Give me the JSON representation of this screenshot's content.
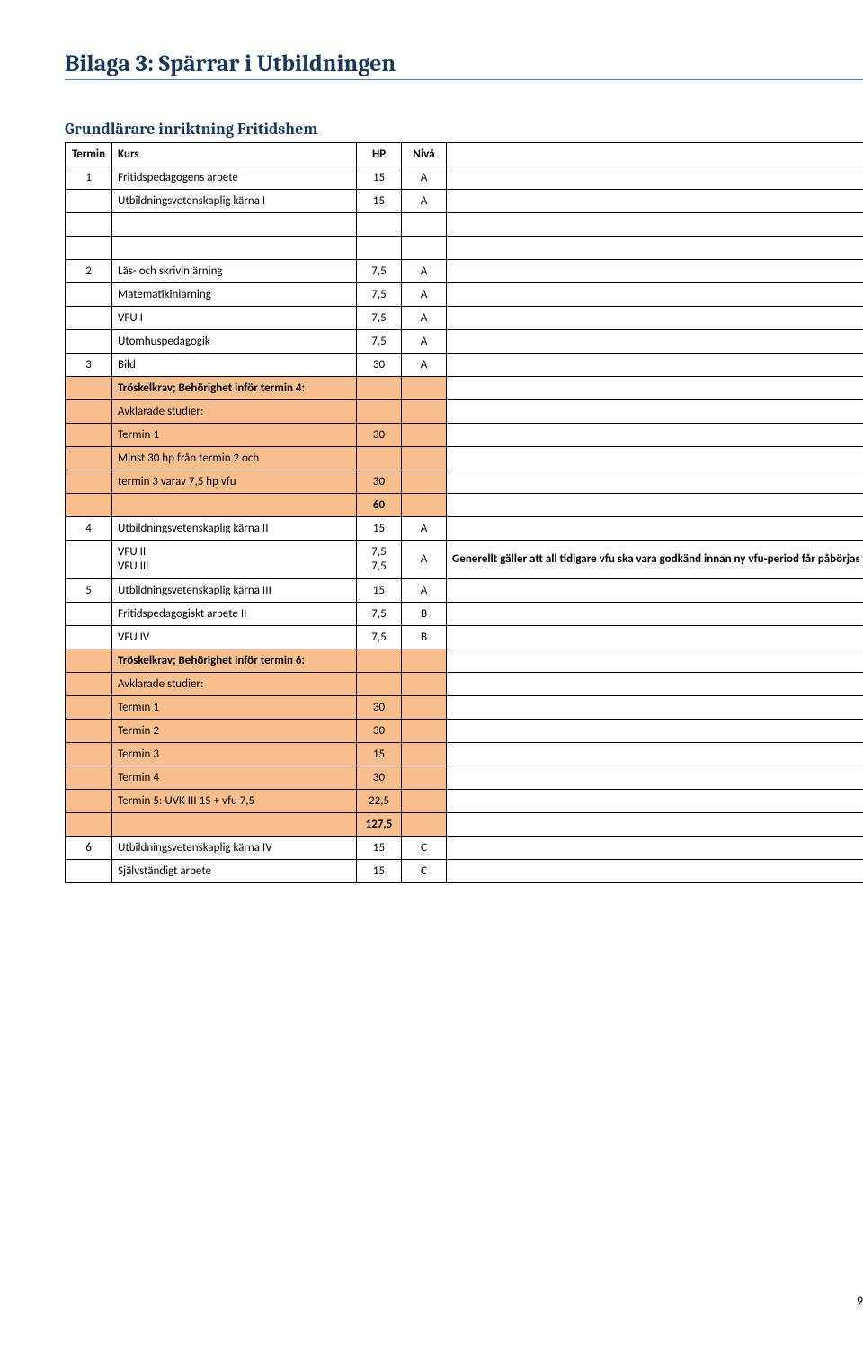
{
  "page_title": "Bilaga 3: Spärrar i Utbildningen",
  "subtitle": "Grundlärare inriktning Fritidshem",
  "page_number": "9",
  "colors": {
    "title_color": "#17365d",
    "title_rule": "#4f81bd",
    "highlight_bg": "#fabf8f",
    "border": "#000000",
    "background": "#ffffff"
  },
  "table": {
    "header": [
      "Termin",
      "Kurs",
      "HP",
      "Nivå",
      ""
    ],
    "rows": [
      {
        "cells": [
          "1",
          "Fritidspedagogens arbete",
          "15",
          "A",
          ""
        ],
        "highlight": [
          false,
          false,
          false,
          false,
          false
        ]
      },
      {
        "cells": [
          "",
          "Utbildningsvetenskaplig kärna I",
          "15",
          "A",
          ""
        ],
        "highlight": [
          false,
          false,
          false,
          false,
          false
        ]
      },
      {
        "cells": [
          "",
          "",
          "",
          "",
          ""
        ],
        "highlight": [
          false,
          false,
          false,
          false,
          false
        ]
      },
      {
        "cells": [
          "",
          "",
          "",
          "",
          ""
        ],
        "highlight": [
          false,
          false,
          false,
          false,
          false
        ]
      },
      {
        "cells": [
          "2",
          "Läs- och skrivinlärning",
          "7,5",
          "A",
          ""
        ],
        "highlight": [
          false,
          false,
          false,
          false,
          false
        ]
      },
      {
        "cells": [
          "",
          "Matematikinlärning",
          "7,5",
          "A",
          ""
        ],
        "highlight": [
          false,
          false,
          false,
          false,
          false
        ]
      },
      {
        "cells": [
          "",
          "VFU I",
          "7,5",
          "A",
          ""
        ],
        "highlight": [
          false,
          false,
          false,
          false,
          false
        ]
      },
      {
        "cells": [
          "",
          "Utomhuspedagogik",
          "7,5",
          "A",
          ""
        ],
        "highlight": [
          false,
          false,
          false,
          false,
          false
        ]
      },
      {
        "cells": [
          "3",
          "Bild",
          "30",
          "A",
          ""
        ],
        "highlight": [
          false,
          false,
          false,
          false,
          false
        ]
      },
      {
        "cells": [
          "",
          "Tröskelkrav; Behörighet inför termin 4:",
          "",
          "",
          ""
        ],
        "highlight": [
          true,
          true,
          true,
          true,
          false
        ],
        "bold": true
      },
      {
        "cells": [
          "",
          "Avklarade studier:",
          "",
          "",
          ""
        ],
        "highlight": [
          true,
          true,
          true,
          true,
          false
        ]
      },
      {
        "cells": [
          "",
          "Termin 1",
          "30",
          "",
          ""
        ],
        "highlight": [
          true,
          true,
          true,
          true,
          false
        ]
      },
      {
        "cells": [
          "",
          "Minst 30 hp från termin 2 och",
          "",
          "",
          ""
        ],
        "highlight": [
          true,
          true,
          true,
          true,
          false
        ]
      },
      {
        "cells": [
          "",
          "termin 3 varav 7,5 hp vfu",
          "30",
          "",
          ""
        ],
        "highlight": [
          true,
          true,
          true,
          true,
          false
        ]
      },
      {
        "cells": [
          "",
          "",
          "60",
          "",
          ""
        ],
        "highlight": [
          true,
          true,
          true,
          true,
          false
        ],
        "bold": true
      },
      {
        "cells": [
          "4",
          "Utbildningsvetenskaplig kärna II",
          "15",
          "A",
          ""
        ],
        "highlight": [
          false,
          false,
          false,
          false,
          false
        ]
      },
      {
        "cells": [
          "",
          "VFU II\nVFU III",
          "7,5\n7,5",
          "A",
          "Generellt gäller att all tidigare vfu ska vara godkänd innan ny vfu-period får påbörjas"
        ],
        "highlight": [
          false,
          false,
          false,
          false,
          false
        ],
        "multiline": true,
        "bold5": true,
        "tall": true
      },
      {
        "cells": [
          "5",
          "Utbildningsvetenskaplig kärna III",
          "15",
          "A",
          ""
        ],
        "highlight": [
          false,
          false,
          false,
          false,
          false
        ]
      },
      {
        "cells": [
          "",
          "Fritidspedagogiskt arbete  II",
          "7,5",
          "B",
          ""
        ],
        "highlight": [
          false,
          false,
          false,
          false,
          false
        ]
      },
      {
        "cells": [
          "",
          "VFU IV",
          "7,5",
          "B",
          ""
        ],
        "highlight": [
          false,
          false,
          false,
          false,
          false
        ]
      },
      {
        "cells": [
          "",
          "Tröskelkrav; Behörighet inför termin 6:",
          "",
          "",
          ""
        ],
        "highlight": [
          true,
          true,
          true,
          true,
          false
        ],
        "bold": true
      },
      {
        "cells": [
          "",
          "Avklarade studier:",
          "",
          "",
          ""
        ],
        "highlight": [
          true,
          true,
          true,
          true,
          false
        ]
      },
      {
        "cells": [
          "",
          "Termin 1",
          "30",
          "",
          ""
        ],
        "highlight": [
          true,
          true,
          true,
          true,
          false
        ]
      },
      {
        "cells": [
          "",
          "Termin 2",
          "30",
          "",
          ""
        ],
        "highlight": [
          true,
          true,
          true,
          true,
          false
        ]
      },
      {
        "cells": [
          "",
          "Termin 3",
          "15",
          "",
          ""
        ],
        "highlight": [
          true,
          true,
          true,
          true,
          false
        ]
      },
      {
        "cells": [
          "",
          "Termin 4",
          "30",
          "",
          ""
        ],
        "highlight": [
          true,
          true,
          true,
          true,
          false
        ]
      },
      {
        "cells": [
          "",
          "Termin 5: UVK III 15  + vfu 7,5",
          "22,5",
          "",
          ""
        ],
        "highlight": [
          true,
          true,
          true,
          true,
          false
        ]
      },
      {
        "cells": [
          "",
          "",
          "127,5",
          "",
          ""
        ],
        "highlight": [
          true,
          true,
          true,
          true,
          false
        ],
        "bold": true
      },
      {
        "cells": [
          "6",
          "Utbildningsvetenskaplig kärna IV",
          "15",
          "C",
          ""
        ],
        "highlight": [
          false,
          false,
          false,
          false,
          false
        ]
      },
      {
        "cells": [
          "",
          "Självständigt arbete",
          "15",
          "C",
          ""
        ],
        "highlight": [
          false,
          false,
          false,
          false,
          false
        ]
      }
    ]
  }
}
